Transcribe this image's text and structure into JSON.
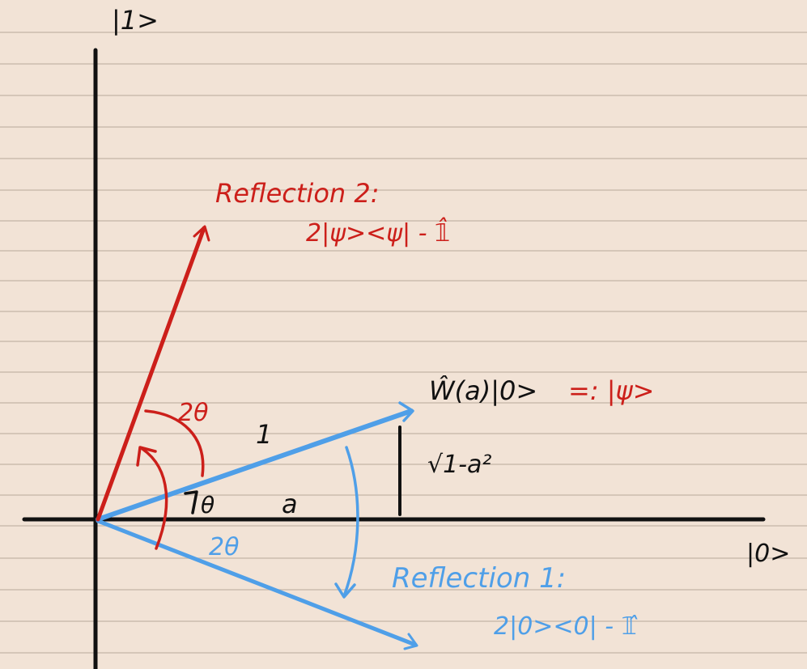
{
  "colors": {
    "paper": "#f2e3d6",
    "rule_line": "#cbbcae",
    "axis": "#111111",
    "red": "#cc1f1a",
    "blue": "#4f9fe8"
  },
  "axes": {
    "vertical_label": "|1>",
    "horizontal_label": "|0>"
  },
  "vectors": {
    "psi_label": "Ŵ(a)|0>",
    "psi_definition": "=: |ψ>",
    "hypotenuse_label": "1",
    "adjacent_label": "a",
    "opposite_label": "√1-a²",
    "angle_theta": "θ"
  },
  "reflection_1": {
    "title": "Reflection 1:",
    "operator": "2|0><0| - 𝟙̂",
    "angle": "2θ"
  },
  "reflection_2": {
    "title": "Reflection 2:",
    "operator": "2|ψ><ψ| - 𝟙̂",
    "angle": "2θ"
  }
}
